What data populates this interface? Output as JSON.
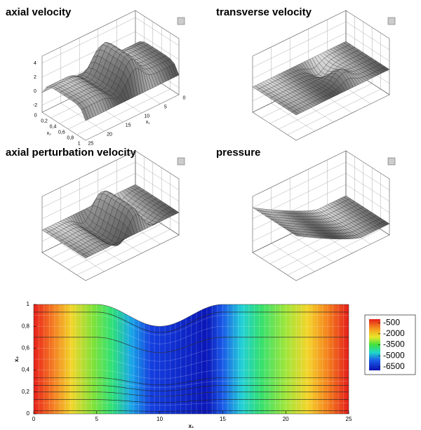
{
  "chart_data": [
    {
      "type": "surface",
      "title": "axial velocity",
      "xlabel": "x₁",
      "ylabel": "x₂",
      "xlim": [
        0,
        25
      ],
      "xticks": [
        0,
        5,
        10,
        15,
        20,
        25
      ],
      "ylim": [
        0,
        1
      ],
      "yticks": [
        0,
        {
          "value": 0.2,
          "label": "0,2"
        },
        {
          "value": 0.4,
          "label": "0,4"
        },
        {
          "value": 0.6,
          "label": "0,6"
        },
        {
          "value": 0.8,
          "label": "0,8"
        },
        1
      ],
      "zlim": [
        -3,
        5
      ],
      "zticks": [
        -2,
        0,
        2,
        4
      ]
    },
    {
      "type": "surface",
      "title": "transverse velocity"
    },
    {
      "type": "surface",
      "title": "axial perturbation velocity"
    },
    {
      "type": "surface",
      "title": "pressure"
    },
    {
      "type": "contour",
      "xlabel": "x₁",
      "ylabel": "x₂",
      "xlim": [
        0,
        25
      ],
      "xticks": [
        0,
        5,
        10,
        15,
        20,
        25
      ],
      "ylim": [
        0,
        1
      ],
      "yticks": [
        0,
        {
          "value": 0.2,
          "label": "0,2"
        },
        {
          "value": 0.4,
          "label": "0,4"
        },
        {
          "value": 0.6,
          "label": "0,6"
        },
        {
          "value": 0.8,
          "label": "0,8"
        },
        1
      ],
      "clim": [
        -7000,
        0
      ],
      "cticks": [
        -500,
        -2000,
        -3500,
        -5000,
        -6500
      ]
    }
  ]
}
